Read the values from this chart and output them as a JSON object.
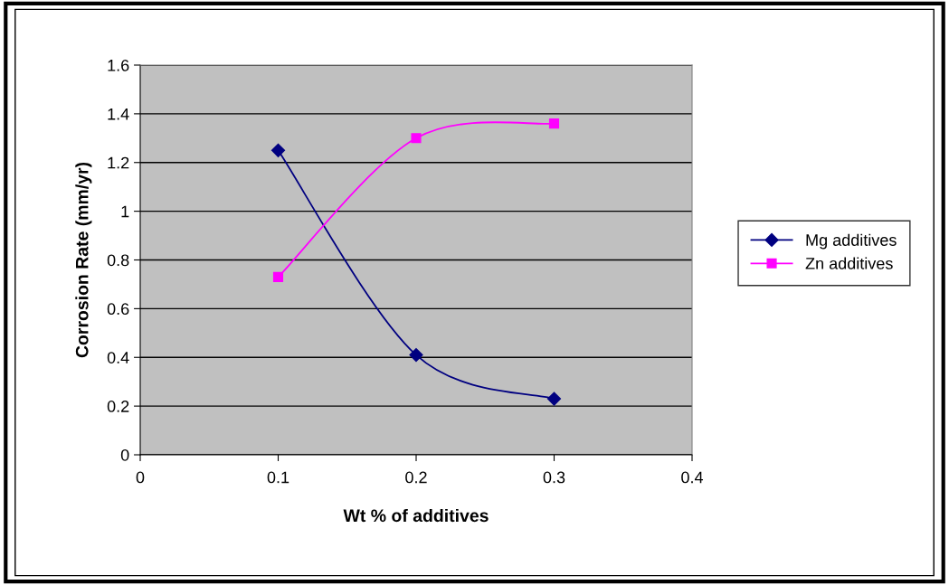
{
  "chart_data": {
    "type": "line",
    "xlabel": "Wt % of additives",
    "ylabel": "Corrosion Rate (mm/yr)",
    "xlim": [
      0,
      0.4
    ],
    "xticks": [
      0,
      0.1,
      0.2,
      0.3,
      0.4
    ],
    "ylim": [
      0,
      1.6
    ],
    "yticks": [
      0,
      0.2,
      0.4,
      0.6,
      0.8,
      1,
      1.2,
      1.4,
      1.6
    ],
    "grid": "y",
    "legend": "right",
    "line_style": "solid",
    "series": [
      {
        "name": "Mg additives",
        "color": "#000080",
        "marker": "diamond",
        "x": [
          0.1,
          0.2,
          0.3
        ],
        "values": [
          1.25,
          0.41,
          0.23
        ]
      },
      {
        "name": "Zn additives",
        "color": "#ff00ff",
        "marker": "square",
        "x": [
          0.1,
          0.2,
          0.3
        ],
        "values": [
          0.73,
          1.3,
          1.36
        ]
      }
    ]
  }
}
